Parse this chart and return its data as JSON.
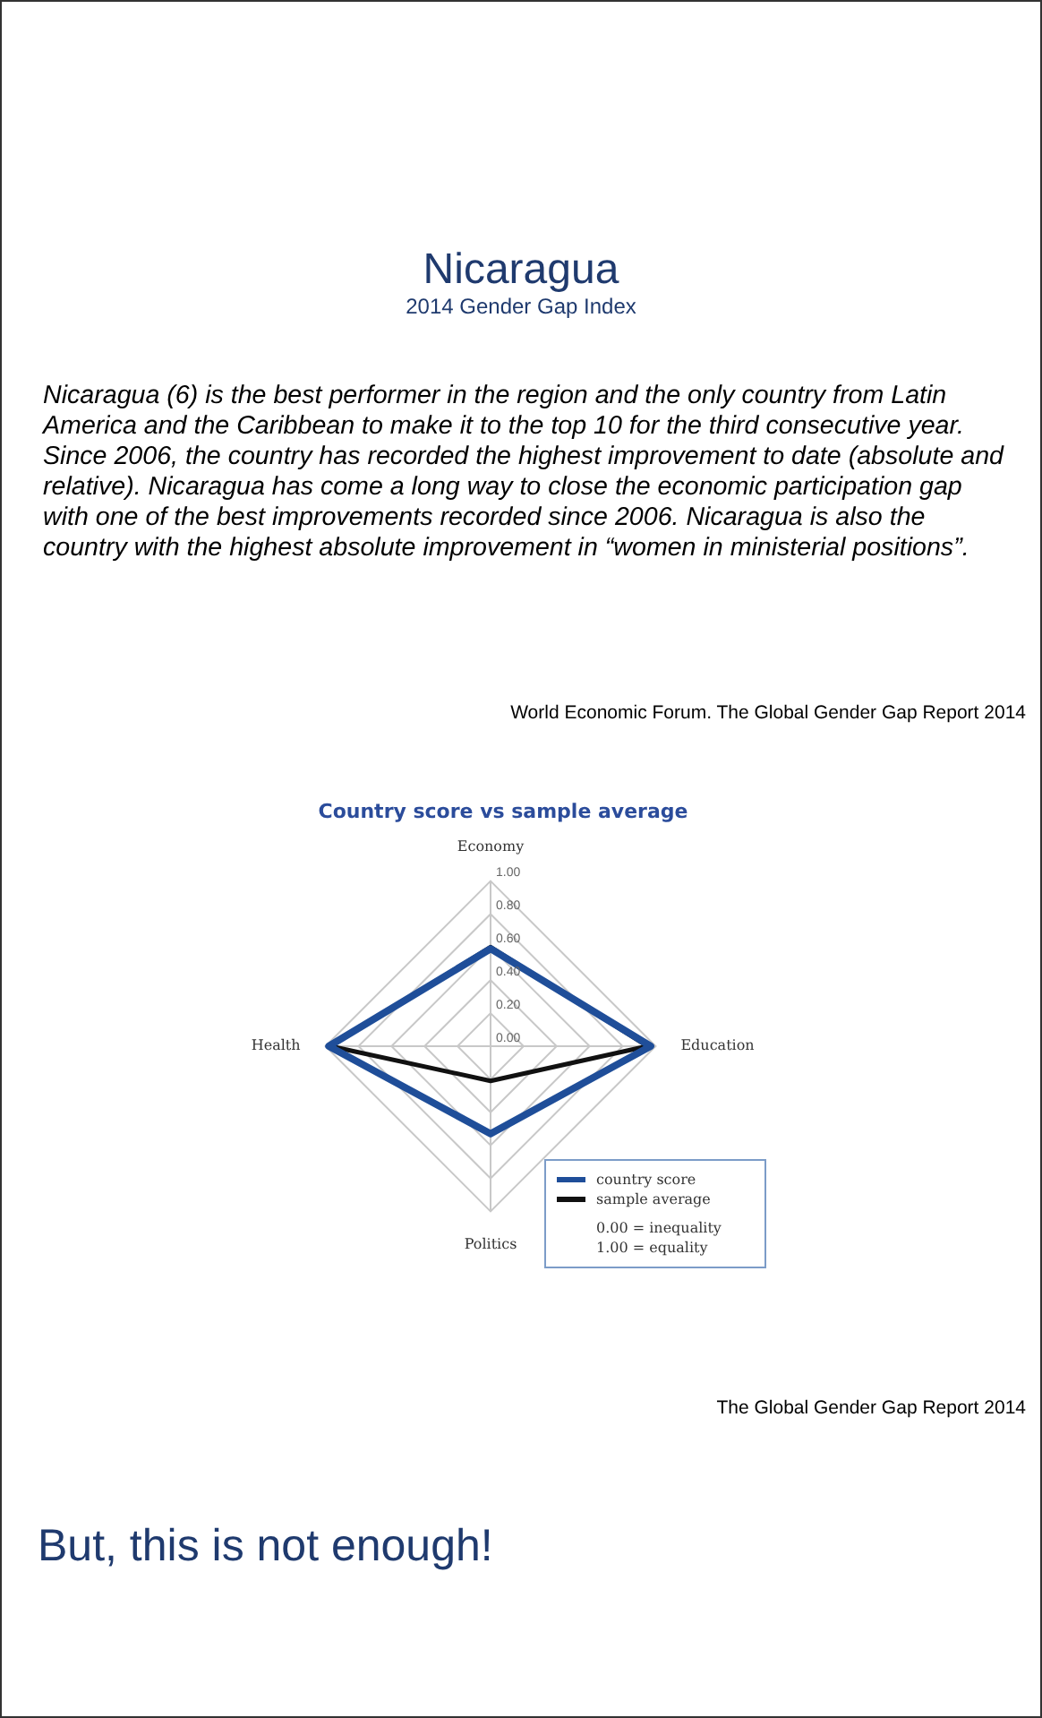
{
  "chart_data": {
    "type": "radar",
    "title": "Country score vs sample average",
    "categories": [
      "Economy",
      "Education",
      "Politics",
      "Health"
    ],
    "series": [
      {
        "name": "country score",
        "color": "#1f4e99",
        "values": [
          0.59,
          0.97,
          0.53,
          0.98
        ]
      },
      {
        "name": "sample average",
        "color": "#111111",
        "values": [
          0.6,
          0.95,
          0.21,
          0.97
        ]
      }
    ],
    "ylim": [
      0,
      1
    ],
    "yticks": [
      {
        "value": 0,
        "label": "0.00"
      },
      {
        "value": 0.2,
        "label": "0.20"
      },
      {
        "value": 0.4,
        "label": "0.40"
      },
      {
        "value": 0.6,
        "label": "0.60"
      },
      {
        "value": 0.8,
        "label": "0.80"
      },
      {
        "value": 1,
        "label": "1.00"
      }
    ],
    "grid": true,
    "legend": "bottom right",
    "marker": "none",
    "line_style": "solid",
    "annotations": [
      "Nicaragua",
      "2014 Gender Gap Index",
      "Nicaragua (6) is the best performer in the region and the only country from Latin America and the Caribbean to make it to the top 10 for the third consecutive year. Since 2006, the country has recorded the highest improvement to date (absolute and relative). Nicaragua has come a long way to close the economic participation gap with one of the best improvements recorded since 2006. Nicaragua is also the country with the highest absolute improvement in “women in ministerial positions”.",
      "World Economic Forum. The Global Gender Gap Report 2014",
      "0.00 = inequality",
      "1.00 = equality",
      "The Global Gender Gap Report 2014",
      "But, this is not enough!"
    ]
  }
}
